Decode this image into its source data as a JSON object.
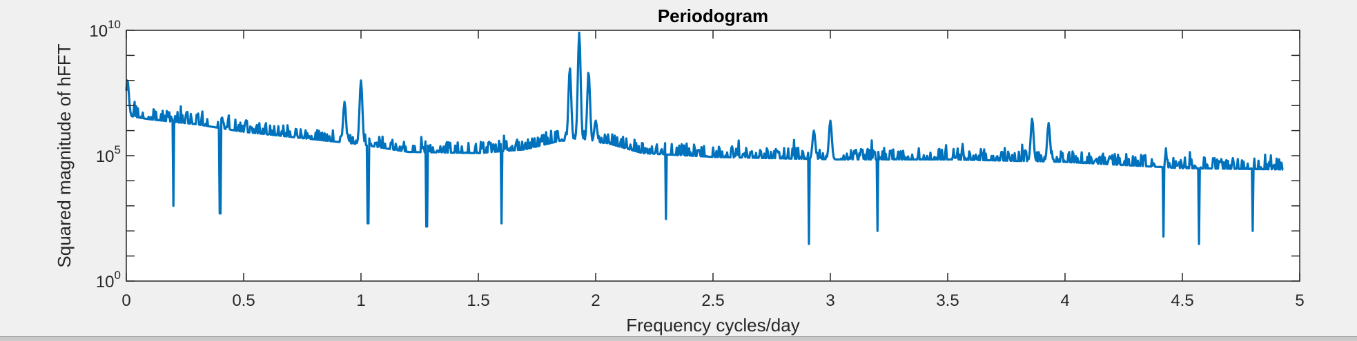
{
  "chart_data": {
    "type": "line",
    "title": "Periodogram",
    "xlabel": "Frequency cycles/day",
    "ylabel": "Squared magnitude of hFFT",
    "xlim": [
      0,
      5
    ],
    "ylim": [
      1,
      10000000000
    ],
    "yscale": "log",
    "xticks": [
      0,
      0.5,
      1,
      1.5,
      2,
      2.5,
      3,
      3.5,
      4,
      4.5,
      5
    ],
    "xtick_labels": [
      "0",
      "0.5",
      "1",
      "1.5",
      "2",
      "2.5",
      "3",
      "3.5",
      "4",
      "4.5",
      "5"
    ],
    "yticks": [
      1,
      100000,
      10000000000
    ],
    "ytick_labels": [
      {
        "base": "10",
        "exp": "0"
      },
      {
        "base": "10",
        "exp": "5"
      },
      {
        "base": "10",
        "exp": "10"
      }
    ],
    "grid": false,
    "legend": "none",
    "series_color": "#0072BD",
    "series": [
      {
        "x_start": 0,
        "x_end": 4.93,
        "background_log10": [
          [
            0.0,
            6.6
          ],
          [
            0.1,
            6.45
          ],
          [
            0.3,
            6.25
          ],
          [
            0.5,
            5.95
          ],
          [
            0.8,
            5.65
          ],
          [
            1.0,
            5.45
          ],
          [
            1.2,
            5.15
          ],
          [
            1.5,
            5.1
          ],
          [
            1.7,
            5.25
          ],
          [
            1.85,
            5.6
          ],
          [
            2.05,
            5.5
          ],
          [
            2.2,
            5.1
          ],
          [
            2.5,
            4.95
          ],
          [
            3.0,
            4.85
          ],
          [
            3.5,
            4.85
          ],
          [
            4.0,
            4.75
          ],
          [
            4.5,
            4.5
          ],
          [
            4.93,
            4.45
          ]
        ],
        "peaks": [
          {
            "x": 0.005,
            "y": 100000000.0
          },
          {
            "x": 0.93,
            "y": 14000000.0
          },
          {
            "x": 1.0,
            "y": 100000000.0
          },
          {
            "x": 1.89,
            "y": 300000000.0
          },
          {
            "x": 1.93,
            "y": 8000000000.0
          },
          {
            "x": 1.97,
            "y": 200000000.0
          },
          {
            "x": 2.0,
            "y": 2500000.0
          },
          {
            "x": 2.93,
            "y": 1000000.0
          },
          {
            "x": 3.0,
            "y": 2500000.0
          },
          {
            "x": 3.86,
            "y": 3000000.0
          },
          {
            "x": 3.93,
            "y": 2000000.0
          }
        ],
        "dips": [
          {
            "x": 0.2,
            "y": 1000.0
          },
          {
            "x": 0.4,
            "y": 500.0
          },
          {
            "x": 1.03,
            "y": 200.0
          },
          {
            "x": 1.28,
            "y": 150.0
          },
          {
            "x": 1.6,
            "y": 200.0
          },
          {
            "x": 2.3,
            "y": 300.0
          },
          {
            "x": 2.91,
            "y": 30.0
          },
          {
            "x": 3.2,
            "y": 100.0
          },
          {
            "x": 4.42,
            "y": 60.0
          },
          {
            "x": 4.57,
            "y": 30.0
          },
          {
            "x": 4.8,
            "y": 100.0
          }
        ]
      }
    ]
  }
}
